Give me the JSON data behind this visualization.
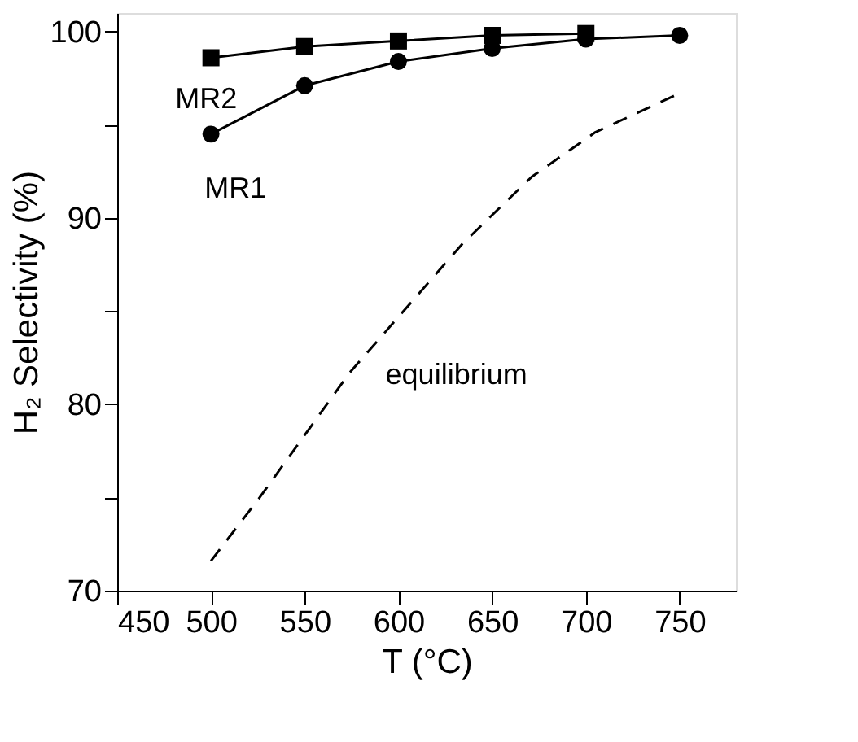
{
  "chart_data": {
    "type": "line",
    "xlabel": "T (°C)",
    "ylabel": "H₂ Selectivity (%)",
    "xlim": [
      450,
      780
    ],
    "xticks": [
      450,
      500,
      550,
      600,
      650,
      700,
      750
    ],
    "ylim": [
      70,
      101
    ],
    "yticks": [
      70,
      {
        "value": 75,
        "label": null
      },
      80,
      {
        "value": 85,
        "label": null
      },
      90,
      {
        "value": 95,
        "label": null
      },
      100
    ],
    "grid": false,
    "series": [
      {
        "color": "#000000",
        "marker": "square",
        "line_style": "solid",
        "x": [
          500,
          550,
          600,
          650,
          700
        ],
        "values": [
          98.6,
          99.2,
          99.5,
          99.8,
          99.9
        ]
      },
      {
        "color": "#000000",
        "marker": "circle",
        "line_style": "solid",
        "x": [
          500,
          550,
          600,
          650,
          700,
          750
        ],
        "values": [
          94.5,
          97.1,
          98.4,
          99.1,
          99.6,
          99.8
        ]
      },
      {
        "color": "#000000",
        "marker": "none",
        "line_style": "dashed",
        "x": [
          500,
          526,
          574,
          634,
          671,
          705,
          748
        ],
        "values": [
          71.6,
          75.0,
          81.7,
          88.6,
          92.2,
          94.6,
          96.6
        ]
      }
    ],
    "annotations": [
      "MR2",
      "MR1",
      "equilibrium"
    ]
  }
}
